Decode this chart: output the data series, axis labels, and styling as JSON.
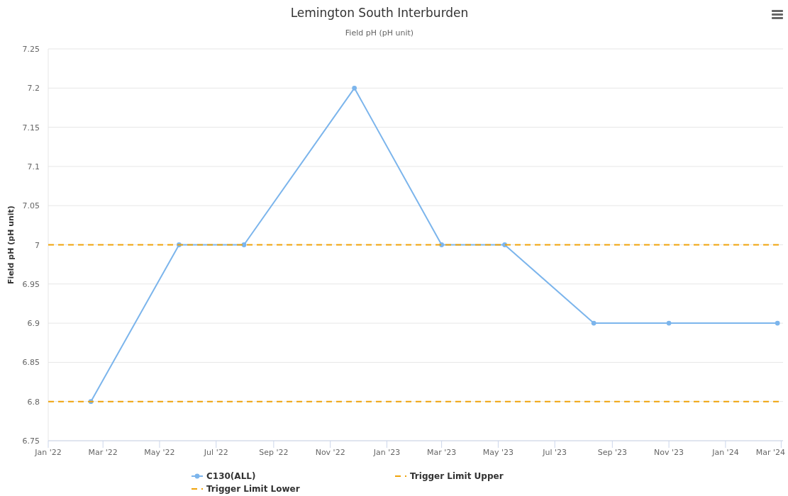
{
  "chart_data": {
    "type": "line",
    "title": "Lemington South Interburden",
    "subtitle": "Field pH (pH unit)",
    "ylabel": "Field pH (pH unit)",
    "x": [
      "2022-02-16",
      "2022-05-22",
      "2022-07-31",
      "2022-11-27",
      "2023-03-01",
      "2023-05-08",
      "2023-08-12",
      "2023-11-01",
      "2024-02-26"
    ],
    "series": [
      {
        "name": "C130(ALL)",
        "color": "#7cb5ec",
        "values": [
          6.8,
          7,
          7,
          7.2,
          7,
          7,
          6.9,
          6.9,
          6.9
        ]
      },
      {
        "name": "Trigger Limit Upper",
        "color": "#f0a30a",
        "line_style": "dashed",
        "marker": "none",
        "x": [
          "2022-01-01",
          "2024-03-03"
        ],
        "values": [
          7,
          7
        ]
      },
      {
        "name": "Trigger Limit Lower",
        "color": "#f0a30a",
        "line_style": "dashed",
        "marker": "none",
        "x": [
          "2022-01-01",
          "2024-03-03"
        ],
        "values": [
          6.8,
          6.8
        ]
      }
    ],
    "xlim": [
      "2022-01-01",
      "2024-03-03"
    ],
    "xticks": [
      {
        "value": "2022-01-01",
        "label": "Jan '22"
      },
      {
        "value": "2022-03-01",
        "label": "Mar '22"
      },
      {
        "value": "2022-05-01",
        "label": "May '22"
      },
      {
        "value": "2022-07-01",
        "label": "Jul '22"
      },
      {
        "value": "2022-09-01",
        "label": "Sep '22"
      },
      {
        "value": "2022-11-01",
        "label": "Nov '22"
      },
      {
        "value": "2023-01-01",
        "label": "Jan '23"
      },
      {
        "value": "2023-03-01",
        "label": "Mar '23"
      },
      {
        "value": "2023-05-01",
        "label": "May '23"
      },
      {
        "value": "2023-07-01",
        "label": "Jul '23"
      },
      {
        "value": "2023-09-01",
        "label": "Sep '23"
      },
      {
        "value": "2023-11-01",
        "label": "Nov '23"
      },
      {
        "value": "2024-01-01",
        "label": "Jan '24"
      },
      {
        "value": "2024-03-01",
        "label": "Mar '24"
      }
    ],
    "ylim": [
      6.75,
      7.25
    ],
    "yticks": [
      6.75,
      6.8,
      6.85,
      6.9,
      6.95,
      7,
      7.05,
      7.1,
      7.15,
      7.2,
      7.25
    ],
    "grid": "y",
    "legend": "bottom",
    "marker": "circle",
    "line_style": "solid"
  }
}
